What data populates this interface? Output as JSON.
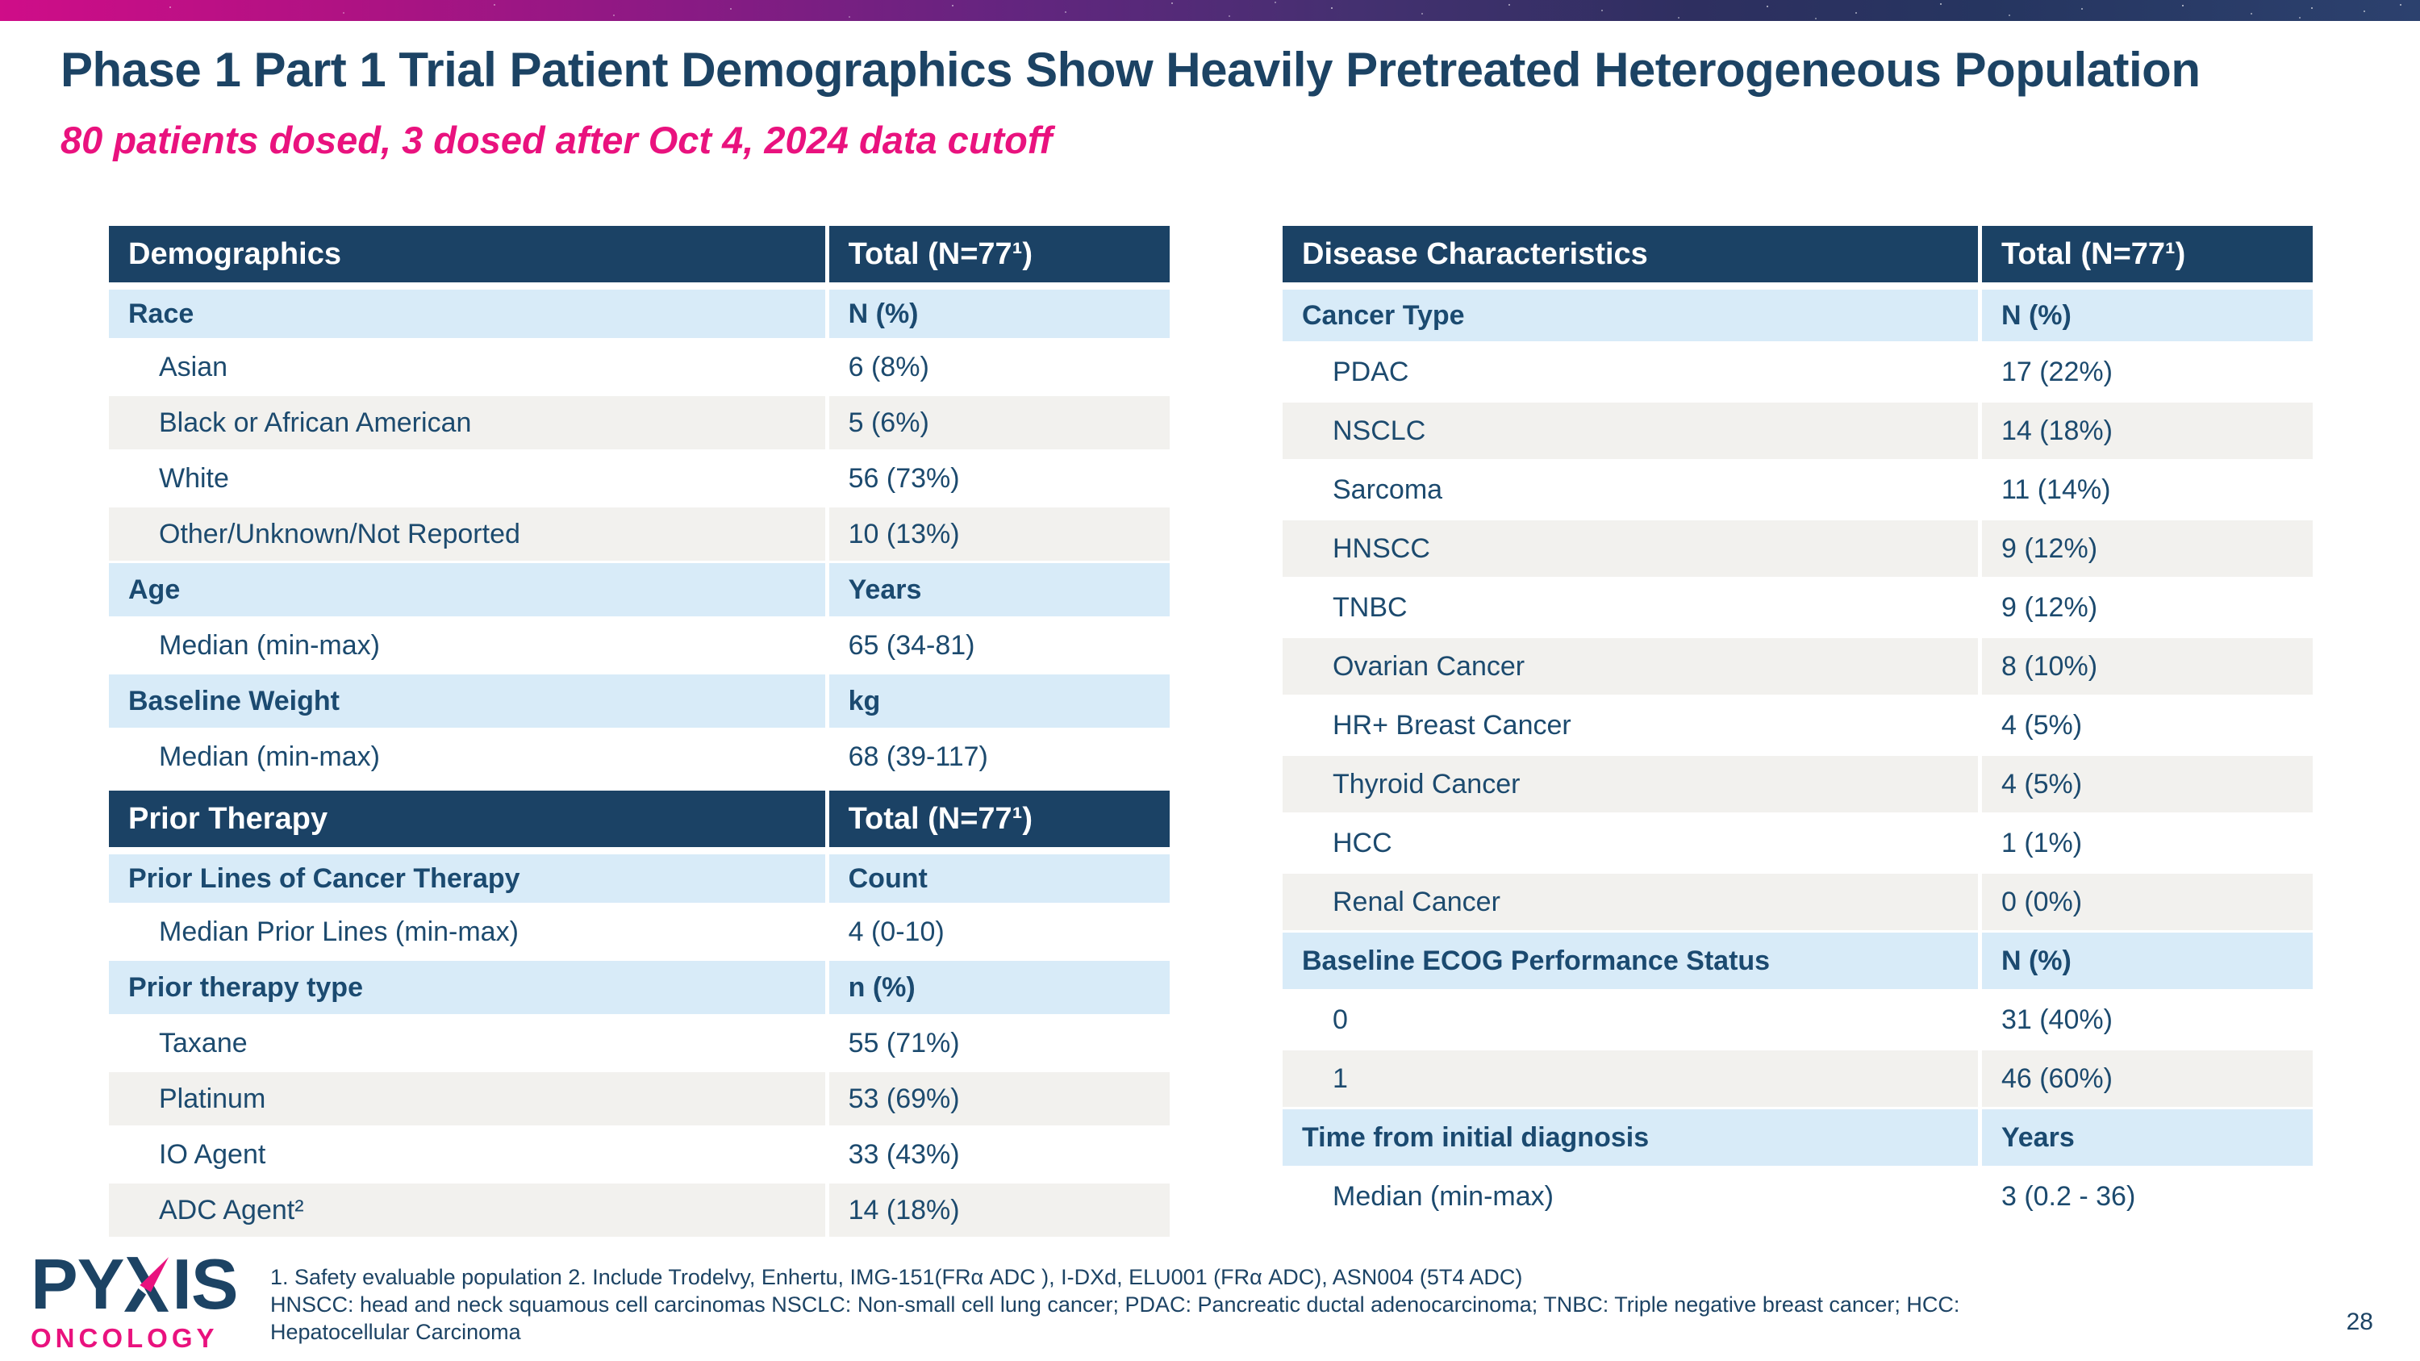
{
  "header": {
    "title": "Phase 1 Part 1 Trial Patient Demographics Show Heavily Pretreated Heterogeneous Population",
    "subtitle": "80 patients dosed, 3 dosed after Oct 4, 2024 data cutoff"
  },
  "tables": [
    {
      "id": "demographics",
      "header": [
        "Demographics",
        "Total (N=77¹)"
      ],
      "rows": [
        {
          "label": "Race",
          "value": "N (%)",
          "section": true
        },
        {
          "label": "Asian",
          "value": "6 (8%)",
          "section": false
        },
        {
          "label": "Black or African American",
          "value": "5 (6%)",
          "section": false
        },
        {
          "label": "White",
          "value": "56 (73%)",
          "section": false
        },
        {
          "label": "Other/Unknown/Not Reported",
          "value": "10 (13%)",
          "section": false
        },
        {
          "label": "Age",
          "value": "Years",
          "section": true
        },
        {
          "label": "Median (min-max)",
          "value": "65 (34-81)",
          "section": false
        },
        {
          "label": "Baseline Weight",
          "value": "kg",
          "section": true
        },
        {
          "label": "Median (min-max)",
          "value": "68 (39-117)",
          "section": false
        }
      ]
    },
    {
      "id": "prior-therapy",
      "header": [
        "Prior Therapy",
        "Total (N=77¹)"
      ],
      "rows": [
        {
          "label": "Prior Lines of Cancer Therapy",
          "value": "Count",
          "section": true
        },
        {
          "label": "Median Prior Lines (min-max)",
          "value": "4 (0-10)",
          "section": false
        },
        {
          "label": "Prior therapy type",
          "value": "n (%)",
          "section": true
        },
        {
          "label": "Taxane",
          "value": "55 (71%)",
          "section": false
        },
        {
          "label": "Platinum",
          "value": "53 (69%)",
          "section": false
        },
        {
          "label": "IO Agent",
          "value": "33 (43%)",
          "section": false
        },
        {
          "label": "ADC Agent²",
          "value": "14 (18%)",
          "section": false
        }
      ]
    },
    {
      "id": "disease-characteristics",
      "header": [
        "Disease Characteristics",
        "Total (N=77¹)"
      ],
      "rows": [
        {
          "label": "Cancer Type",
          "value": "N (%)",
          "section": true
        },
        {
          "label": "PDAC",
          "value": "17 (22%)",
          "section": false
        },
        {
          "label": "NSCLC",
          "value": "14 (18%)",
          "section": false
        },
        {
          "label": "Sarcoma",
          "value": "11 (14%)",
          "section": false
        },
        {
          "label": "HNSCC",
          "value": "9 (12%)",
          "section": false
        },
        {
          "label": "TNBC",
          "value": "9 (12%)",
          "section": false
        },
        {
          "label": "Ovarian Cancer",
          "value": "8 (10%)",
          "section": false
        },
        {
          "label": "HR+ Breast Cancer",
          "value": "4 (5%)",
          "section": false
        },
        {
          "label": "Thyroid Cancer",
          "value": "4 (5%)",
          "section": false
        },
        {
          "label": "HCC",
          "value": "1 (1%)",
          "section": false
        },
        {
          "label": "Renal Cancer",
          "value": "0 (0%)",
          "section": false
        },
        {
          "label": "Baseline ECOG Performance Status",
          "value": "N (%)",
          "section": true
        },
        {
          "label": "0",
          "value": "31 (40%)",
          "section": false
        },
        {
          "label": "1",
          "value": "46 (60%)",
          "section": false
        },
        {
          "label": "Time from initial diagnosis",
          "value": "Years",
          "section": true
        },
        {
          "label": "Median (min-max)",
          "value": "3 (0.2 - 36)",
          "section": false
        }
      ]
    }
  ],
  "footer": {
    "logo": {
      "name": "PYXIS ONCOLOGY",
      "left": "PY",
      "right": "IS",
      "subtext": "ONCOLOGY"
    },
    "footnote_lines": [
      "1. Safety evaluable population 2. Include Trodelvy, Enhertu, IMG-151(FRα ADC ), I-DXd, ELU001 (FRα ADC), ASN004 (5T4 ADC)",
      "HNSCC: head and neck squamous cell carcinomas NSCLC: Non-small cell lung cancer; PDAC: Pancreatic ductal adenocarcinoma; TNBC: Triple negative breast cancer; HCC:",
      "Hepatocellular Carcinoma"
    ],
    "page_number": "28"
  },
  "colors": {
    "header_navy": "#1b4265",
    "title_navy": "#1c4364",
    "text_navy": "#1c4a6e",
    "accent_pink": "#e9127e",
    "row_blue": "#d8ebf8",
    "row_gray": "#f2f1ee"
  }
}
